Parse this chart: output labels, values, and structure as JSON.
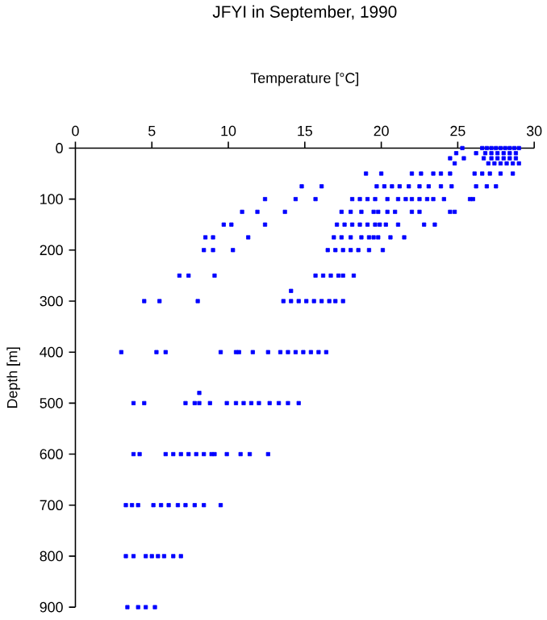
{
  "chart_data": {
    "type": "scatter",
    "title": "JFYI in September, 1990",
    "xlabel": "Temperature [°C]",
    "ylabel": "Depth [m]",
    "xlim": [
      0,
      30
    ],
    "ylim": [
      900,
      0
    ],
    "xticks": [
      0,
      5,
      10,
      15,
      20,
      25,
      30
    ],
    "yticks": [
      0,
      100,
      200,
      300,
      400,
      500,
      600,
      700,
      800,
      900
    ],
    "marker": "square",
    "series": [
      {
        "color": "#0000ff",
        "x": [
          25.3,
          26.6,
          26.9,
          27.2,
          27.5,
          27.8,
          28.1,
          28.4,
          28.7,
          29.0,
          24.9,
          26.2,
          26.8,
          27.2,
          27.6,
          28.0,
          28.4,
          28.8,
          24.5,
          25.4,
          26.7,
          27.2,
          27.6,
          28.0,
          28.4,
          28.8,
          24.8,
          27.0,
          27.4,
          27.8,
          28.2,
          28.6,
          29.0,
          19.0,
          20.0,
          22.0,
          22.6,
          23.4,
          23.9,
          24.5,
          26.1,
          26.6,
          27.1,
          27.8,
          28.6,
          14.8,
          16.1,
          19.7,
          20.2,
          20.7,
          21.2,
          21.8,
          22.5,
          23.1,
          23.9,
          24.6,
          26.2,
          26.9,
          27.5,
          12.4,
          14.4,
          15.7,
          18.1,
          18.6,
          19.1,
          19.6,
          20.4,
          21.1,
          21.6,
          22.0,
          22.5,
          23.0,
          23.4,
          24.1,
          25.8,
          26.0,
          10.9,
          11.9,
          13.7,
          17.4,
          18.0,
          18.7,
          19.5,
          19.8,
          20.4,
          20.9,
          22.0,
          22.5,
          24.5,
          24.8,
          9.7,
          10.2,
          12.4,
          17.1,
          17.6,
          18.1,
          18.6,
          19.1,
          19.6,
          19.9,
          20.3,
          21.1,
          22.8,
          23.5,
          8.5,
          9.0,
          11.3,
          16.9,
          17.4,
          18.0,
          18.7,
          19.2,
          19.5,
          19.8,
          20.6,
          21.5,
          8.4,
          9.0,
          10.3,
          16.5,
          17.0,
          17.5,
          18.0,
          18.5,
          19.2,
          20.1,
          6.8,
          7.4,
          9.1,
          15.7,
          16.2,
          16.7,
          17.2,
          17.5,
          18.2,
          14.1,
          4.5,
          5.5,
          8.0,
          13.6,
          14.1,
          14.6,
          15.1,
          15.6,
          16.1,
          16.6,
          17.0,
          17.5,
          3.0,
          5.3,
          5.9,
          9.5,
          10.5,
          10.7,
          11.6,
          12.6,
          13.4,
          13.9,
          14.4,
          14.9,
          15.4,
          15.9,
          16.4,
          8.1,
          3.8,
          4.5,
          7.2,
          7.8,
          8.1,
          8.8,
          9.9,
          10.5,
          11.0,
          11.5,
          12.0,
          12.7,
          13.3,
          13.9,
          14.6,
          3.8,
          4.2,
          5.9,
          6.4,
          6.9,
          7.4,
          7.9,
          8.4,
          8.9,
          9.1,
          9.9,
          10.8,
          11.4,
          12.6,
          3.3,
          3.7,
          4.1,
          5.1,
          5.6,
          6.1,
          6.7,
          7.2,
          7.8,
          8.4,
          9.5,
          3.3,
          3.8,
          4.6,
          5.0,
          5.4,
          5.8,
          6.4,
          6.9,
          3.4,
          4.1,
          4.6,
          5.2
        ],
        "values": [
          0,
          0,
          0,
          0,
          0,
          0,
          0,
          0,
          0,
          0,
          10,
          10,
          10,
          10,
          10,
          10,
          10,
          10,
          20,
          20,
          20,
          20,
          20,
          20,
          20,
          20,
          30,
          30,
          30,
          30,
          30,
          30,
          30,
          50,
          50,
          50,
          50,
          50,
          50,
          50,
          50,
          50,
          50,
          50,
          50,
          75,
          75,
          75,
          75,
          75,
          75,
          75,
          75,
          75,
          75,
          75,
          75,
          75,
          75,
          100,
          100,
          100,
          100,
          100,
          100,
          100,
          100,
          100,
          100,
          100,
          100,
          100,
          100,
          100,
          100,
          100,
          125,
          125,
          125,
          125,
          125,
          125,
          125,
          125,
          125,
          125,
          125,
          125,
          125,
          125,
          150,
          150,
          150,
          150,
          150,
          150,
          150,
          150,
          150,
          150,
          150,
          150,
          150,
          150,
          175,
          175,
          175,
          175,
          175,
          175,
          175,
          175,
          175,
          175,
          175,
          175,
          200,
          200,
          200,
          200,
          200,
          200,
          200,
          200,
          200,
          200,
          250,
          250,
          250,
          250,
          250,
          250,
          250,
          250,
          250,
          280,
          300,
          300,
          300,
          300,
          300,
          300,
          300,
          300,
          300,
          300,
          300,
          300,
          400,
          400,
          400,
          400,
          400,
          400,
          400,
          400,
          400,
          400,
          400,
          400,
          400,
          400,
          400,
          480,
          500,
          500,
          500,
          500,
          500,
          500,
          500,
          500,
          500,
          500,
          500,
          500,
          500,
          500,
          500,
          600,
          600,
          600,
          600,
          600,
          600,
          600,
          600,
          600,
          600,
          600,
          600,
          600,
          600,
          700,
          700,
          700,
          700,
          700,
          700,
          700,
          700,
          700,
          700,
          700,
          800,
          800,
          800,
          800,
          800,
          800,
          800,
          800,
          900,
          900,
          900,
          900
        ]
      }
    ]
  }
}
